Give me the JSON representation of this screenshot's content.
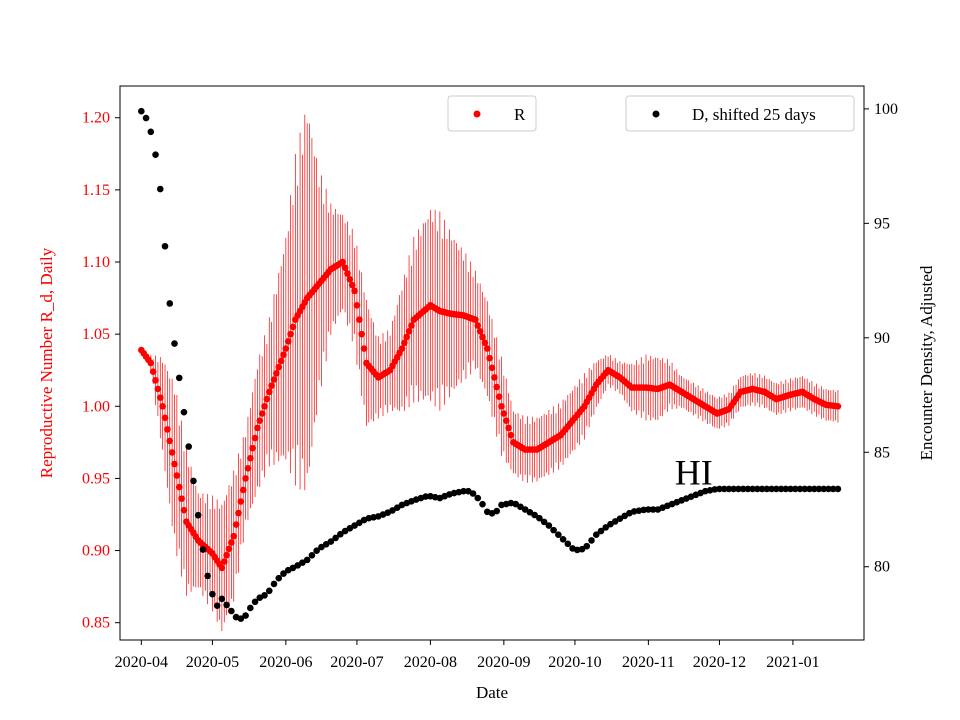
{
  "chart_data": {
    "type": "scatter",
    "xlabel": "Date",
    "x_tick_labels": [
      "2020-04",
      "2020-05",
      "2020-06",
      "2020-07",
      "2020-08",
      "2020-09",
      "2020-10",
      "2020-11",
      "2020-12",
      "2021-01"
    ],
    "x_range": [
      "2020-03-23",
      "2021-01-31"
    ],
    "y_left": {
      "label": "Reproductive Number R_d, Daily",
      "color": "#ff0000",
      "range": [
        0.838,
        1.222
      ],
      "ticks": [
        0.85,
        0.9,
        0.95,
        1.0,
        1.05,
        1.1,
        1.15,
        1.2
      ],
      "tick_labels": [
        "0.85",
        "0.90",
        "0.95",
        "1.00",
        "1.05",
        "1.10",
        "1.15",
        "1.20"
      ]
    },
    "y_right": {
      "label": "Encounter Density, Adjusted",
      "color": "#000000",
      "range": [
        76.8,
        101.0
      ],
      "ticks": [
        80,
        85,
        90,
        95,
        100
      ],
      "tick_labels": [
        "80",
        "85",
        "90",
        "95",
        "100"
      ]
    },
    "series": [
      {
        "name": "R",
        "axis": "left",
        "color": "#ff0000",
        "error_bars": true,
        "points": [
          [
            "2020-04-01",
            1.039,
            0.0
          ],
          [
            "2020-04-05",
            1.03,
            0.005
          ],
          [
            "2020-04-10",
            1.0,
            0.03
          ],
          [
            "2020-04-15",
            0.96,
            0.05
          ],
          [
            "2020-04-20",
            0.92,
            0.045
          ],
          [
            "2020-04-25",
            0.907,
            0.03
          ],
          [
            "2020-05-01",
            0.898,
            0.035
          ],
          [
            "2020-05-05",
            0.888,
            0.04
          ],
          [
            "2020-05-10",
            0.91,
            0.04
          ],
          [
            "2020-05-15",
            0.95,
            0.03
          ],
          [
            "2020-05-20",
            0.985,
            0.04
          ],
          [
            "2020-05-25",
            1.01,
            0.045
          ],
          [
            "2020-06-01",
            1.04,
            0.07
          ],
          [
            "2020-06-05",
            1.06,
            0.1
          ],
          [
            "2020-06-10",
            1.075,
            0.12
          ],
          [
            "2020-06-15",
            1.085,
            0.07
          ],
          [
            "2020-06-20",
            1.095,
            0.04
          ],
          [
            "2020-06-25",
            1.1,
            0.03
          ],
          [
            "2020-06-30",
            1.08,
            0.035
          ],
          [
            "2020-07-05",
            1.03,
            0.04
          ],
          [
            "2020-07-10",
            1.02,
            0.025
          ],
          [
            "2020-07-15",
            1.025,
            0.025
          ],
          [
            "2020-07-20",
            1.04,
            0.04
          ],
          [
            "2020-07-25",
            1.06,
            0.05
          ],
          [
            "2020-08-01",
            1.07,
            0.06
          ],
          [
            "2020-08-05",
            1.066,
            0.06
          ],
          [
            "2020-08-10",
            1.064,
            0.05
          ],
          [
            "2020-08-15",
            1.063,
            0.04
          ],
          [
            "2020-08-20",
            1.06,
            0.03
          ],
          [
            "2020-08-25",
            1.04,
            0.03
          ],
          [
            "2020-08-31",
            1.0,
            0.03
          ],
          [
            "2020-09-05",
            0.975,
            0.02
          ],
          [
            "2020-09-10",
            0.97,
            0.02
          ],
          [
            "2020-09-15",
            0.97,
            0.02
          ],
          [
            "2020-09-20",
            0.975,
            0.02
          ],
          [
            "2020-09-25",
            0.98,
            0.02
          ],
          [
            "2020-09-30",
            0.99,
            0.02
          ],
          [
            "2020-10-05",
            1.0,
            0.02
          ],
          [
            "2020-10-10",
            1.015,
            0.015
          ],
          [
            "2020-10-15",
            1.025,
            0.01
          ],
          [
            "2020-10-20",
            1.02,
            0.01
          ],
          [
            "2020-10-25",
            1.013,
            0.015
          ],
          [
            "2020-10-31",
            1.013,
            0.02
          ],
          [
            "2020-11-05",
            1.012,
            0.02
          ],
          [
            "2020-11-10",
            1.015,
            0.015
          ],
          [
            "2020-11-15",
            1.01,
            0.01
          ],
          [
            "2020-11-20",
            1.005,
            0.01
          ],
          [
            "2020-11-25",
            1.0,
            0.01
          ],
          [
            "2020-11-30",
            0.995,
            0.01
          ],
          [
            "2020-12-05",
            0.998,
            0.01
          ],
          [
            "2020-12-10",
            1.01,
            0.01
          ],
          [
            "2020-12-15",
            1.012,
            0.01
          ],
          [
            "2020-12-20",
            1.01,
            0.01
          ],
          [
            "2020-12-25",
            1.005,
            0.01
          ],
          [
            "2020-12-31",
            1.008,
            0.01
          ],
          [
            "2021-01-05",
            1.01,
            0.01
          ],
          [
            "2021-01-10",
            1.005,
            0.01
          ],
          [
            "2021-01-15",
            1.001,
            0.01
          ],
          [
            "2021-01-20",
            1.0,
            0.01
          ]
        ]
      },
      {
        "name": "D, shifted 25 days",
        "axis": "right",
        "color": "#000000",
        "error_bars": false,
        "points": [
          [
            "2020-04-01",
            99.9
          ],
          [
            "2020-04-03",
            99.6
          ],
          [
            "2020-04-05",
            99.0
          ],
          [
            "2020-04-07",
            98.0
          ],
          [
            "2020-04-09",
            96.5
          ],
          [
            "2020-04-10",
            95.0
          ],
          [
            "2020-04-11",
            94.0
          ],
          [
            "2020-04-12",
            92.5
          ],
          [
            "2020-04-14",
            90.5
          ],
          [
            "2020-04-16",
            89.0
          ],
          [
            "2020-04-18",
            87.5
          ],
          [
            "2020-04-20",
            86.0
          ],
          [
            "2020-04-22",
            84.5
          ],
          [
            "2020-04-24",
            83.0
          ],
          [
            "2020-04-26",
            81.5
          ],
          [
            "2020-04-28",
            80.0
          ],
          [
            "2020-05-01",
            78.8
          ],
          [
            "2020-05-03",
            78.3
          ],
          [
            "2020-05-05",
            78.6
          ],
          [
            "2020-05-08",
            78.2
          ],
          [
            "2020-05-11",
            77.8
          ],
          [
            "2020-05-14",
            77.7
          ],
          [
            "2020-05-17",
            78.2
          ],
          [
            "2020-05-20",
            78.6
          ],
          [
            "2020-05-24",
            78.8
          ],
          [
            "2020-05-28",
            79.4
          ],
          [
            "2020-06-01",
            79.8
          ],
          [
            "2020-06-05",
            80.0
          ],
          [
            "2020-06-10",
            80.3
          ],
          [
            "2020-06-15",
            80.8
          ],
          [
            "2020-06-20",
            81.1
          ],
          [
            "2020-06-25",
            81.5
          ],
          [
            "2020-06-30",
            81.8
          ],
          [
            "2020-07-05",
            82.1
          ],
          [
            "2020-07-10",
            82.2
          ],
          [
            "2020-07-15",
            82.4
          ],
          [
            "2020-07-20",
            82.7
          ],
          [
            "2020-07-25",
            82.9
          ],
          [
            "2020-07-31",
            83.1
          ],
          [
            "2020-08-05",
            83.0
          ],
          [
            "2020-08-10",
            83.2
          ],
          [
            "2020-08-15",
            83.3
          ],
          [
            "2020-08-18",
            83.3
          ],
          [
            "2020-08-22",
            82.9
          ],
          [
            "2020-08-25",
            82.4
          ],
          [
            "2020-08-28",
            82.3
          ],
          [
            "2020-08-31",
            82.7
          ],
          [
            "2020-09-05",
            82.8
          ],
          [
            "2020-09-10",
            82.5
          ],
          [
            "2020-09-15",
            82.2
          ],
          [
            "2020-09-20",
            81.8
          ],
          [
            "2020-09-25",
            81.3
          ],
          [
            "2020-09-30",
            80.8
          ],
          [
            "2020-10-03",
            80.7
          ],
          [
            "2020-10-06",
            80.9
          ],
          [
            "2020-10-10",
            81.4
          ],
          [
            "2020-10-15",
            81.8
          ],
          [
            "2020-10-20",
            82.1
          ],
          [
            "2020-10-25",
            82.4
          ],
          [
            "2020-10-31",
            82.5
          ],
          [
            "2020-11-05",
            82.5
          ],
          [
            "2020-11-10",
            82.7
          ],
          [
            "2020-11-15",
            82.9
          ],
          [
            "2020-11-20",
            83.1
          ],
          [
            "2020-11-25",
            83.3
          ],
          [
            "2020-11-30",
            83.4
          ],
          [
            "2020-12-05",
            83.4
          ],
          [
            "2020-12-15",
            83.4
          ],
          [
            "2020-12-31",
            83.4
          ],
          [
            "2021-01-10",
            83.4
          ],
          [
            "2021-01-20",
            83.4
          ]
        ]
      }
    ],
    "annotation": {
      "text": "HI",
      "date": "2020-11-10",
      "y_right": 83.6
    },
    "legends": [
      {
        "name": "legend-r",
        "placement": "top-center",
        "label": "R",
        "color": "#ff0000"
      },
      {
        "name": "legend-d",
        "placement": "top-right",
        "label": "D, shifted 25 days",
        "color": "#000000"
      }
    ]
  }
}
